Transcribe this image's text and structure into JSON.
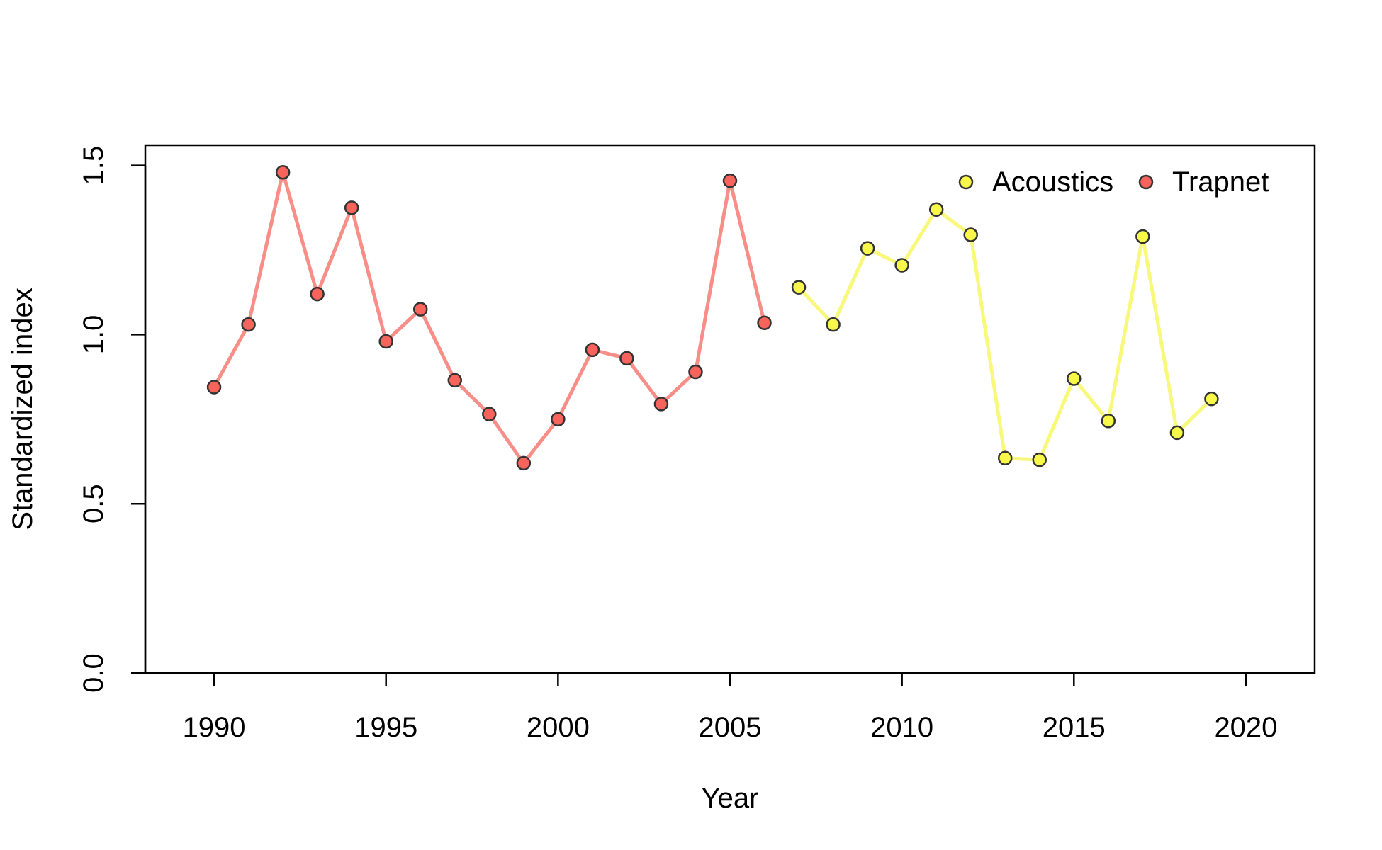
{
  "chart_data": {
    "type": "line",
    "title": "",
    "xlabel": "Year",
    "ylabel": "Standardized index",
    "xlim": [
      1988,
      2022
    ],
    "ylim": [
      0,
      1.56
    ],
    "x_ticks": [
      1990,
      1995,
      2000,
      2005,
      2010,
      2015,
      2020
    ],
    "x_tick_labels": [
      "1990",
      "1995",
      "2000",
      "2005",
      "2010",
      "2015",
      "2020"
    ],
    "y_ticks": [
      0,
      0.5,
      1,
      1.5
    ],
    "y_tick_labels": [
      "0.0",
      "0.5",
      "1.0",
      "1.5"
    ],
    "grid": false,
    "legend_position": "top-right",
    "series": [
      {
        "name": "Trapnet",
        "line_color": "#f88e88",
        "point_fill": "#f8635b",
        "x": [
          1990,
          1991,
          1992,
          1993,
          1994,
          1995,
          1996,
          1997,
          1998,
          1999,
          2000,
          2001,
          2002,
          2003,
          2004,
          2005,
          2006
        ],
        "values": [
          0.845,
          1.03,
          1.48,
          1.12,
          1.375,
          0.98,
          1.075,
          0.865,
          0.765,
          0.62,
          0.75,
          0.955,
          0.93,
          0.795,
          0.89,
          1.455,
          1.035
        ]
      },
      {
        "name": "Acoustics",
        "line_color": "#f8f87a",
        "point_fill": "#f8f84a",
        "x": [
          2007,
          2008,
          2009,
          2010,
          2011,
          2012,
          2013,
          2014,
          2015,
          2016,
          2017,
          2018,
          2019
        ],
        "values": [
          1.14,
          1.03,
          1.255,
          1.205,
          1.37,
          1.295,
          0.635,
          0.63,
          0.87,
          0.745,
          1.29,
          0.71,
          0.81
        ]
      }
    ],
    "legend": [
      {
        "label": "Acoustics",
        "series": "Acoustics"
      },
      {
        "label": "Trapnet",
        "series": "Trapnet"
      }
    ]
  }
}
